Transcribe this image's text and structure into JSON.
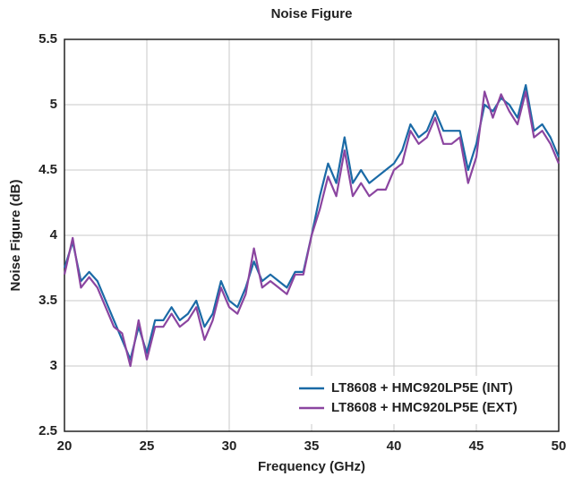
{
  "chart_data": {
    "type": "line",
    "title": "Noise Figure",
    "x_label": "Frequency (GHz)",
    "y_label": "Noise Figure (dB)",
    "x": [
      20,
      20.5,
      21,
      21.5,
      22,
      22.5,
      23,
      23.5,
      24,
      24.5,
      25,
      25.5,
      26,
      26.5,
      27,
      27.5,
      28,
      28.5,
      29,
      29.5,
      30,
      30.5,
      31,
      31.5,
      32,
      32.5,
      33,
      33.5,
      34,
      34.5,
      35,
      35.5,
      36,
      36.5,
      37,
      37.5,
      38,
      38.5,
      39,
      39.5,
      40,
      40.5,
      41,
      41.5,
      42,
      42.5,
      43,
      43.5,
      44,
      44.5,
      45,
      45.5,
      46,
      46.5,
      47,
      47.5,
      48,
      48.5,
      49,
      49.5,
      50
    ],
    "series": [
      {
        "name": "LT8608 + HMC920LP5E (INT)",
        "color": "#1a6aa6",
        "values": [
          3.75,
          3.95,
          3.65,
          3.72,
          3.65,
          3.5,
          3.35,
          3.2,
          3.05,
          3.3,
          3.1,
          3.35,
          3.35,
          3.45,
          3.35,
          3.4,
          3.5,
          3.3,
          3.4,
          3.65,
          3.5,
          3.45,
          3.6,
          3.8,
          3.65,
          3.7,
          3.65,
          3.6,
          3.72,
          3.72,
          4.0,
          4.3,
          4.55,
          4.4,
          4.75,
          4.4,
          4.5,
          4.4,
          4.45,
          4.5,
          4.55,
          4.65,
          4.85,
          4.75,
          4.8,
          4.95,
          4.8,
          4.8,
          4.8,
          4.5,
          4.7,
          5.0,
          4.95,
          5.05,
          5.0,
          4.9,
          5.15,
          4.8,
          4.85,
          4.75,
          4.6
        ]
      },
      {
        "name": "LT8608 + HMC920LP5E (EXT)",
        "color": "#8b45a0",
        "values": [
          3.7,
          3.98,
          3.6,
          3.68,
          3.6,
          3.45,
          3.3,
          3.25,
          3.0,
          3.35,
          3.05,
          3.3,
          3.3,
          3.4,
          3.3,
          3.35,
          3.45,
          3.2,
          3.35,
          3.6,
          3.45,
          3.4,
          3.55,
          3.9,
          3.6,
          3.65,
          3.6,
          3.55,
          3.7,
          3.7,
          4.0,
          4.2,
          4.45,
          4.3,
          4.65,
          4.3,
          4.4,
          4.3,
          4.35,
          4.35,
          4.5,
          4.55,
          4.8,
          4.7,
          4.75,
          4.9,
          4.7,
          4.7,
          4.75,
          4.4,
          4.6,
          5.1,
          4.9,
          5.08,
          4.95,
          4.85,
          5.1,
          4.75,
          4.8,
          4.7,
          4.55
        ]
      }
    ],
    "xlim": [
      20,
      50
    ],
    "ylim": [
      2.5,
      5.5
    ],
    "xticks": [
      20,
      25,
      30,
      35,
      40,
      45,
      50
    ],
    "yticks": [
      2.5,
      3,
      3.5,
      4,
      4.5,
      5,
      5.5
    ],
    "grid": true,
    "legend": "lower right"
  }
}
